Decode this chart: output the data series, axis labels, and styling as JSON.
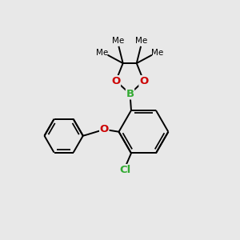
{
  "bg_color": "#e8e8e8",
  "bond_color": "#000000",
  "O_color": "#cc0000",
  "B_color": "#33aa33",
  "Cl_color": "#33aa33",
  "line_width": 1.4,
  "figsize": [
    3.0,
    3.0
  ],
  "dpi": 100,
  "xlim": [
    0,
    10
  ],
  "ylim": [
    0,
    10
  ],
  "font_size": 8.5
}
